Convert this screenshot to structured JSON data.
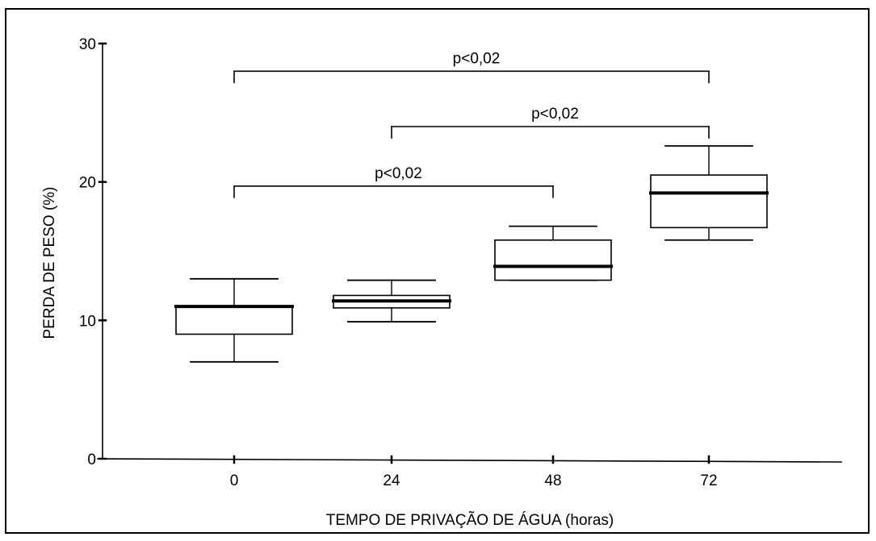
{
  "chart_data": {
    "type": "box",
    "xlabel": "TEMPO DE PRIVAÇÃO DE ÁGUA (horas)",
    "ylabel": "PERDA DE PESO (%)",
    "ylim": [
      0,
      30
    ],
    "yticks": [
      0,
      10,
      20,
      30
    ],
    "categories": [
      "0",
      "24",
      "48",
      "72"
    ],
    "boxes": [
      {
        "category": "0",
        "whisker_low": 7.0,
        "q1": 9.0,
        "median": 11.0,
        "q3": 11.0,
        "whisker_high": 13.0
      },
      {
        "category": "24",
        "whisker_low": 9.9,
        "q1": 10.9,
        "median": 11.4,
        "q3": 11.8,
        "whisker_high": 12.9
      },
      {
        "category": "48",
        "whisker_low": 12.9,
        "q1": 12.9,
        "median": 13.9,
        "q3": 15.8,
        "whisker_high": 16.8
      },
      {
        "category": "72",
        "whisker_low": 15.8,
        "q1": 16.7,
        "median": 19.2,
        "q3": 20.5,
        "whisker_high": 22.6
      }
    ],
    "significance": [
      {
        "from": "0",
        "to": "72",
        "label": "p<0,02",
        "y": 28.0
      },
      {
        "from": "24",
        "to": "72",
        "label": "p<0,02",
        "y": 24.0
      },
      {
        "from": "0",
        "to": "48",
        "label": "p<0,02",
        "y": 19.7
      }
    ],
    "grid": false,
    "legend": "none",
    "colors": {
      "line": "#000000",
      "box_fill": "#ffffff",
      "background": "#ffffff"
    }
  }
}
